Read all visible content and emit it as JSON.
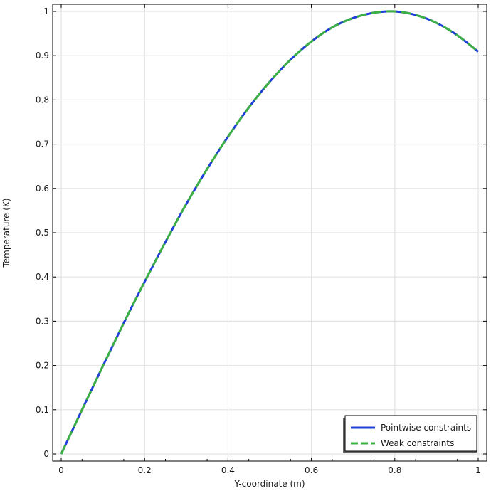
{
  "chart_data": {
    "type": "line",
    "xlabel": "Y-coordinate (m)",
    "ylabel": "Temperature (K)",
    "xlim": [
      0,
      1
    ],
    "ylim": [
      0,
      1
    ],
    "xticks": [
      "0",
      "0.2",
      "0.4",
      "0.6",
      "0.8",
      "1"
    ],
    "yticks": [
      "0",
      "0.1",
      "0.2",
      "0.3",
      "0.4",
      "0.5",
      "0.6",
      "0.7",
      "0.8",
      "0.9",
      "1"
    ],
    "grid": true,
    "legend_position": "bottom-right",
    "x": [
      0,
      0.05,
      0.1,
      0.15,
      0.2,
      0.25,
      0.3,
      0.35,
      0.4,
      0.45,
      0.5,
      0.55,
      0.6,
      0.65,
      0.7,
      0.75,
      0.8,
      0.85,
      0.9,
      0.95,
      1.0
    ],
    "series": [
      {
        "name": "Pointwise constraints",
        "color": "#1f3fd6",
        "style": "solid",
        "values": [
          0,
          0.1,
          0.199,
          0.296,
          0.389,
          0.479,
          0.565,
          0.644,
          0.717,
          0.783,
          0.841,
          0.891,
          0.932,
          0.964,
          0.985,
          0.997,
          1.0,
          0.992,
          0.974,
          0.946,
          0.909
        ]
      },
      {
        "name": "Weak constraints",
        "color": "#3cb043",
        "style": "dashed",
        "values": [
          0,
          0.1,
          0.199,
          0.296,
          0.389,
          0.479,
          0.565,
          0.644,
          0.717,
          0.783,
          0.841,
          0.891,
          0.932,
          0.964,
          0.985,
          0.997,
          1.0,
          0.992,
          0.974,
          0.946,
          0.909
        ]
      }
    ]
  }
}
